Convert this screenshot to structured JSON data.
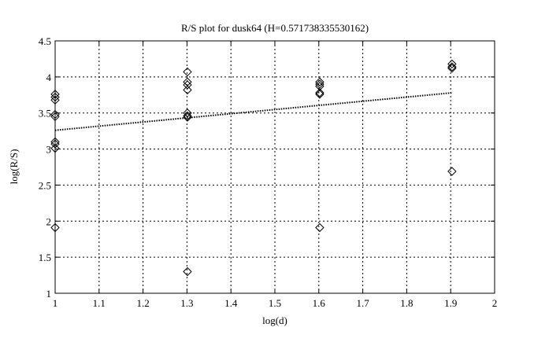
{
  "chart_data": {
    "type": "scatter",
    "title": "R/S plot for dusk64 (H=0.571738335530162)",
    "xlabel": "log(d)",
    "ylabel": "log(R/S)",
    "xlim": [
      1,
      2
    ],
    "ylim": [
      1,
      4.5
    ],
    "xticks": [
      "1",
      "1.1",
      "1.2",
      "1.3",
      "1.4",
      "1.5",
      "1.6",
      "1.7",
      "1.8",
      "1.9",
      "2"
    ],
    "yticks": [
      "1",
      "1.5",
      "2",
      "2.5",
      "3",
      "3.5",
      "4",
      "4.5"
    ],
    "grid": true,
    "marker": "diamond",
    "points": [
      {
        "x": 1,
        "y": 3.76
      },
      {
        "x": 1,
        "y": 3.72
      },
      {
        "x": 1,
        "y": 3.68
      },
      {
        "x": 1,
        "y": 3.48
      },
      {
        "x": 1,
        "y": 3.45
      },
      {
        "x": 1,
        "y": 3.1
      },
      {
        "x": 1,
        "y": 3.07
      },
      {
        "x": 1,
        "y": 3.01
      },
      {
        "x": 1,
        "y": 1.91
      },
      {
        "x": 1.301,
        "y": 4.07
      },
      {
        "x": 1.301,
        "y": 3.93
      },
      {
        "x": 1.301,
        "y": 3.89
      },
      {
        "x": 1.301,
        "y": 3.82
      },
      {
        "x": 1.301,
        "y": 3.5
      },
      {
        "x": 1.301,
        "y": 3.46
      },
      {
        "x": 1.301,
        "y": 3.44
      },
      {
        "x": 1.301,
        "y": 1.3
      },
      {
        "x": 1.602,
        "y": 3.93
      },
      {
        "x": 1.602,
        "y": 3.9
      },
      {
        "x": 1.602,
        "y": 3.87
      },
      {
        "x": 1.602,
        "y": 3.78
      },
      {
        "x": 1.602,
        "y": 3.76
      },
      {
        "x": 1.602,
        "y": 1.91
      },
      {
        "x": 1.903,
        "y": 4.18
      },
      {
        "x": 1.903,
        "y": 4.14
      },
      {
        "x": 1.903,
        "y": 4.12
      },
      {
        "x": 1.903,
        "y": 2.69
      }
    ],
    "fit_line": {
      "x": [
        1,
        1.903
      ],
      "y": [
        3.26,
        3.78
      ],
      "style": "dotted"
    }
  }
}
